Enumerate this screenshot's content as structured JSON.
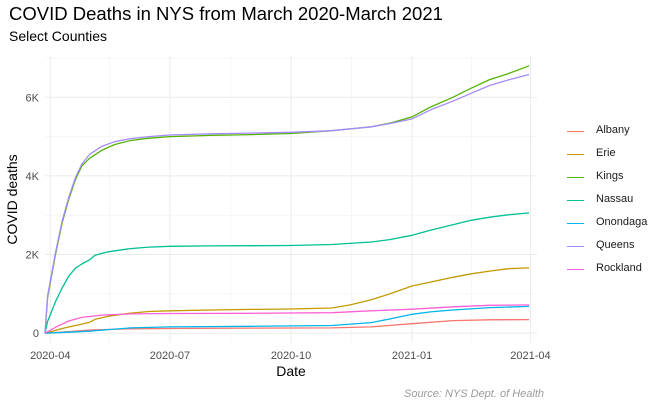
{
  "title": "COVID Deaths in NYS from March 2020-March 2021",
  "subtitle": "Select Counties",
  "caption": "Source: NYS Dept. of Health",
  "chart_data": {
    "type": "line",
    "title": "COVID Deaths in NYS from March 2020-March 2021",
    "subtitle": "Select Counties",
    "xlabel": "Date",
    "ylabel": "COVID deaths",
    "x_ticks": [
      "2020-04",
      "2020-07",
      "2020-10",
      "2021-01",
      "2021-04"
    ],
    "y_ticks": [
      {
        "value": 0,
        "label": "0"
      },
      {
        "value": 2000,
        "label": "2K"
      },
      {
        "value": 4000,
        "label": "4K"
      },
      {
        "value": 6000,
        "label": "6K"
      }
    ],
    "xlim": [
      "2020-03-28",
      "2021-04-06"
    ],
    "ylim": [
      -250,
      7050
    ],
    "grid": true,
    "legend_position": "right",
    "series": [
      {
        "name": "Albany",
        "color": "#F8766D",
        "x": [
          "2020-03-28",
          "2020-04-15",
          "2020-05-01",
          "2020-06-01",
          "2020-07-01",
          "2020-09-01",
          "2020-11-01",
          "2020-12-01",
          "2021-01-01",
          "2021-02-01",
          "2021-03-01",
          "2021-03-31"
        ],
        "y": [
          0,
          40,
          80,
          110,
          120,
          128,
          135,
          160,
          240,
          320,
          340,
          345
        ]
      },
      {
        "name": "Erie",
        "color": "#C49A00",
        "x": [
          "2020-03-28",
          "2020-04-10",
          "2020-04-25",
          "2020-05-01",
          "2020-05-05",
          "2020-05-15",
          "2020-06-01",
          "2020-06-15",
          "2020-07-01",
          "2020-08-01",
          "2020-09-01",
          "2020-10-01",
          "2020-11-01",
          "2020-11-15",
          "2020-12-01",
          "2020-12-15",
          "2021-01-01",
          "2021-01-15",
          "2021-02-01",
          "2021-02-15",
          "2021-03-01",
          "2021-03-15",
          "2021-03-31"
        ],
        "y": [
          0,
          120,
          230,
          280,
          350,
          430,
          510,
          550,
          570,
          590,
          605,
          615,
          640,
          720,
          850,
          1000,
          1200,
          1300,
          1420,
          1510,
          1580,
          1640,
          1660
        ]
      },
      {
        "name": "Kings",
        "color": "#53B400",
        "x": [
          "2020-03-28",
          "2020-03-30",
          "2020-04-05",
          "2020-04-10",
          "2020-04-15",
          "2020-04-20",
          "2020-04-25",
          "2020-05-01",
          "2020-05-10",
          "2020-05-20",
          "2020-06-01",
          "2020-06-15",
          "2020-07-01",
          "2020-08-01",
          "2020-09-01",
          "2020-10-01",
          "2020-11-01",
          "2020-12-01",
          "2020-12-15",
          "2021-01-01",
          "2021-01-15",
          "2021-02-01",
          "2021-02-15",
          "2021-03-01",
          "2021-03-15",
          "2021-03-31"
        ],
        "y": [
          0,
          900,
          2000,
          2800,
          3400,
          3900,
          4250,
          4450,
          4650,
          4800,
          4900,
          4960,
          5000,
          5030,
          5050,
          5080,
          5150,
          5250,
          5340,
          5500,
          5750,
          6000,
          6230,
          6450,
          6600,
          6800
        ]
      },
      {
        "name": "Nassau",
        "color": "#00C094",
        "x": [
          "2020-03-28",
          "2020-03-30",
          "2020-04-05",
          "2020-04-10",
          "2020-04-15",
          "2020-04-20",
          "2020-04-25",
          "2020-05-01",
          "2020-05-05",
          "2020-05-15",
          "2020-06-01",
          "2020-06-15",
          "2020-07-01",
          "2020-08-01",
          "2020-09-01",
          "2020-10-01",
          "2020-11-01",
          "2020-12-01",
          "2020-12-15",
          "2021-01-01",
          "2021-01-15",
          "2021-02-01",
          "2021-02-15",
          "2021-03-01",
          "2021-03-15",
          "2021-03-31"
        ],
        "y": [
          0,
          300,
          800,
          1150,
          1450,
          1650,
          1760,
          1870,
          1980,
          2070,
          2150,
          2190,
          2210,
          2220,
          2225,
          2230,
          2255,
          2320,
          2380,
          2490,
          2620,
          2760,
          2870,
          2950,
          3010,
          3060
        ]
      },
      {
        "name": "Onondaga",
        "color": "#00B6EB",
        "x": [
          "2020-03-28",
          "2020-04-15",
          "2020-05-01",
          "2020-05-15",
          "2020-06-01",
          "2020-07-01",
          "2020-09-01",
          "2020-11-01",
          "2020-12-01",
          "2020-12-15",
          "2021-01-01",
          "2021-01-15",
          "2021-02-01",
          "2021-03-01",
          "2021-03-31"
        ],
        "y": [
          0,
          25,
          50,
          90,
          135,
          160,
          175,
          195,
          270,
          360,
          480,
          540,
          590,
          650,
          680
        ]
      },
      {
        "name": "Queens",
        "color": "#A58AFF",
        "x": [
          "2020-03-28",
          "2020-03-30",
          "2020-04-05",
          "2020-04-10",
          "2020-04-15",
          "2020-04-20",
          "2020-04-25",
          "2020-05-01",
          "2020-05-10",
          "2020-05-20",
          "2020-06-01",
          "2020-06-15",
          "2020-07-01",
          "2020-08-01",
          "2020-09-01",
          "2020-10-01",
          "2020-11-01",
          "2020-12-01",
          "2020-12-15",
          "2021-01-01",
          "2021-01-15",
          "2021-02-01",
          "2021-02-15",
          "2021-03-01",
          "2021-03-15",
          "2021-03-31"
        ],
        "y": [
          0,
          950,
          2050,
          2850,
          3450,
          3950,
          4300,
          4550,
          4750,
          4870,
          4950,
          5000,
          5040,
          5070,
          5090,
          5110,
          5150,
          5250,
          5330,
          5450,
          5680,
          5900,
          6100,
          6300,
          6440,
          6580
        ]
      },
      {
        "name": "Rockland",
        "color": "#FB61D7",
        "x": [
          "2020-03-28",
          "2020-04-05",
          "2020-04-15",
          "2020-04-25",
          "2020-05-10",
          "2020-06-01",
          "2020-07-01",
          "2020-09-01",
          "2020-11-01",
          "2020-12-01",
          "2021-01-01",
          "2021-02-01",
          "2021-03-01",
          "2021-03-31"
        ],
        "y": [
          0,
          150,
          310,
          400,
          460,
          490,
          500,
          505,
          520,
          570,
          610,
          670,
          710,
          720
        ]
      }
    ]
  }
}
